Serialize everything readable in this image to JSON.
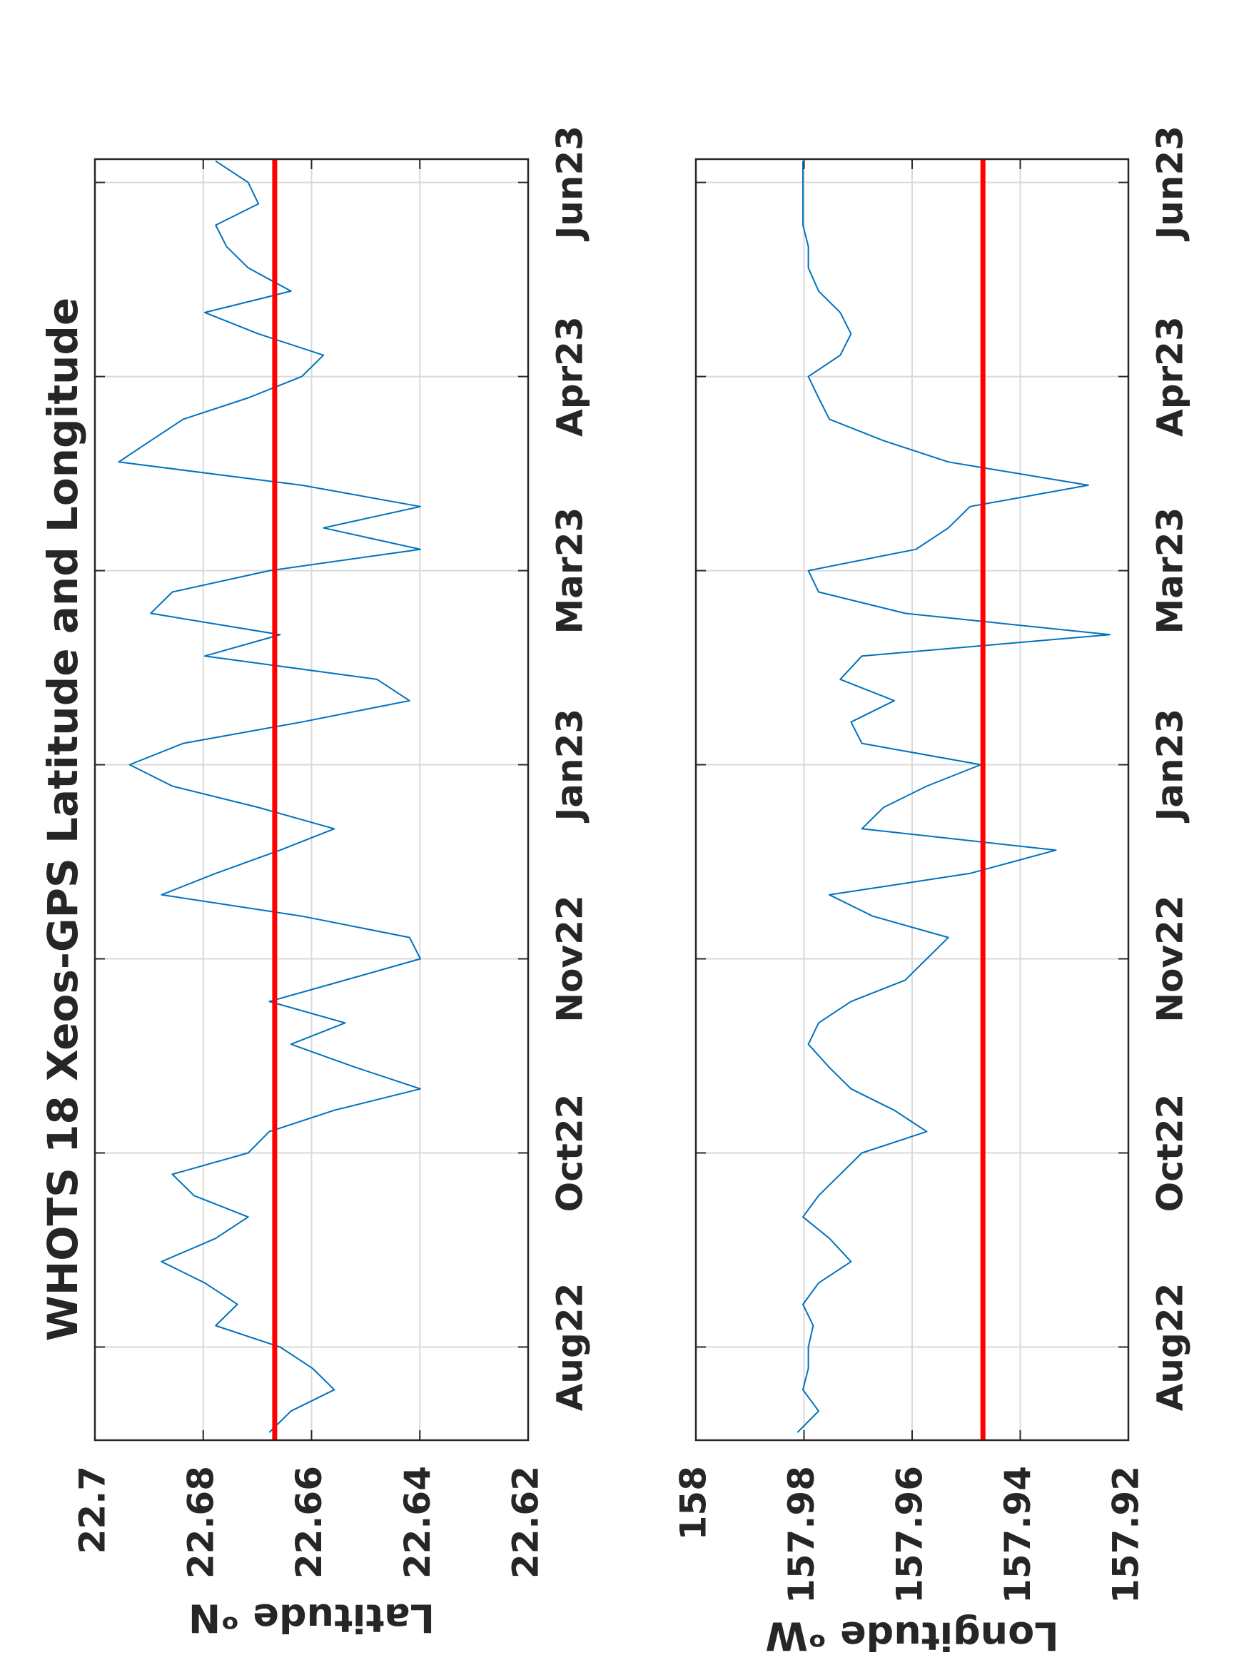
{
  "chart_data": [
    {
      "type": "line",
      "title": "WHOTS 18 Xeos-GPS Latitude and Longitude",
      "ylabel": "Latitude ᵒN",
      "x": [
        -0.44,
        -0.33,
        -0.22,
        -0.11,
        0,
        0.11,
        0.22,
        0.33,
        0.44,
        0.56,
        0.67,
        0.78,
        0.89,
        1,
        1.11,
        1.22,
        1.33,
        1.44,
        1.56,
        1.67,
        1.78,
        1.89,
        2,
        2.11,
        2.22,
        2.33,
        2.44,
        2.56,
        2.67,
        2.78,
        2.89,
        3,
        3.11,
        3.22,
        3.33,
        3.44,
        3.56,
        3.67,
        3.78,
        3.89,
        4,
        4.11,
        4.22,
        4.33,
        4.44,
        4.56,
        4.67,
        4.78,
        4.89,
        5,
        5.11,
        5.22,
        5.33,
        5.44,
        5.56,
        5.67,
        5.78,
        5.89,
        6,
        6.11
      ],
      "series": [
        {
          "color": "#0072bd",
          "values": [
            22.6678,
            22.6638,
            22.6558,
            22.6598,
            22.6658,
            22.6777,
            22.6737,
            22.6797,
            22.6877,
            22.6777,
            22.6717,
            22.6817,
            22.6857,
            22.6717,
            22.6678,
            22.6558,
            22.6399,
            22.6518,
            22.6638,
            22.6538,
            22.6678,
            22.6538,
            22.6399,
            22.6419,
            22.6618,
            22.6877,
            22.6777,
            22.6658,
            22.6558,
            22.6698,
            22.6857,
            22.6936,
            22.6837,
            22.6618,
            22.6419,
            22.6479,
            22.6797,
            22.6658,
            22.6897,
            22.6857,
            22.6678,
            22.6399,
            22.6578,
            22.6399,
            22.6618,
            22.6956,
            22.6897,
            22.6837,
            22.6717,
            22.6618,
            22.6578,
            22.6698,
            22.6797,
            22.6638,
            22.6717,
            22.6757,
            22.6777,
            22.6698,
            22.6717,
            22.6777
          ]
        }
      ],
      "hline": 22.6668,
      "hline_color": "#ff0000",
      "xlim": [
        -0.48,
        6.12
      ],
      "xticks": [
        {
          "value": 0,
          "label": "Aug22"
        },
        {
          "value": 1,
          "label": "Oct22"
        },
        {
          "value": 2,
          "label": "Nov22"
        },
        {
          "value": 3,
          "label": "Jan23"
        },
        {
          "value": 4,
          "label": "Mar23"
        },
        {
          "value": 5,
          "label": "Apr23"
        },
        {
          "value": 6,
          "label": "Jun23"
        }
      ],
      "ylim": [
        22.62,
        22.7
      ],
      "yticks": [
        22.7,
        22.68,
        22.66,
        22.64,
        22.62
      ],
      "grid": true
    },
    {
      "type": "line",
      "ylabel": "Longitude ᵒW",
      "x": [
        -0.44,
        -0.33,
        -0.22,
        -0.11,
        0,
        0.11,
        0.22,
        0.33,
        0.44,
        0.56,
        0.67,
        0.78,
        0.89,
        1,
        1.11,
        1.22,
        1.33,
        1.44,
        1.56,
        1.67,
        1.78,
        1.89,
        2,
        2.11,
        2.22,
        2.33,
        2.44,
        2.56,
        2.67,
        2.78,
        2.89,
        3,
        3.11,
        3.22,
        3.33,
        3.44,
        3.56,
        3.67,
        3.78,
        3.89,
        4,
        4.11,
        4.22,
        4.33,
        4.44,
        4.56,
        4.67,
        4.78,
        4.89,
        5,
        5.11,
        5.22,
        5.33,
        5.44,
        5.56,
        5.67,
        5.78,
        5.89,
        6,
        6.11
      ],
      "series": [
        {
          "color": "#0072bd",
          "values": [
            157.9812,
            157.9773,
            157.9802,
            157.9792,
            157.9792,
            157.9783,
            157.9802,
            157.9773,
            157.9713,
            157.9753,
            157.9802,
            157.9773,
            157.9733,
            157.9693,
            157.9573,
            157.9633,
            157.9713,
            157.9753,
            157.9792,
            157.9773,
            157.9713,
            157.9613,
            157.9573,
            157.9533,
            157.9673,
            157.9753,
            157.9493,
            157.9334,
            157.9693,
            157.9653,
            157.9573,
            157.9473,
            157.9693,
            157.9713,
            157.9633,
            157.9733,
            157.9693,
            157.9234,
            157.9613,
            157.9773,
            157.9792,
            157.9593,
            157.9533,
            157.9493,
            157.9274,
            157.9533,
            157.9653,
            157.9753,
            157.9773,
            157.9792,
            157.9733,
            157.9713,
            157.9733,
            157.9773,
            157.9792,
            157.9792,
            157.9802,
            157.9802,
            157.9802,
            157.9802
          ]
        }
      ],
      "hline": 157.9469,
      "hline_color": "#ff0000",
      "xlim": [
        -0.48,
        6.12
      ],
      "xticks": [
        {
          "value": 0,
          "label": "Aug22"
        },
        {
          "value": 1,
          "label": "Oct22"
        },
        {
          "value": 2,
          "label": "Nov22"
        },
        {
          "value": 3,
          "label": "Jan23"
        },
        {
          "value": 4,
          "label": "Mar23"
        },
        {
          "value": 5,
          "label": "Apr23"
        },
        {
          "value": 6,
          "label": "Jun23"
        }
      ],
      "ylim": [
        157.92,
        158
      ],
      "yticks": [
        158,
        157.98,
        157.96,
        157.94,
        157.92
      ],
      "grid": true
    }
  ]
}
